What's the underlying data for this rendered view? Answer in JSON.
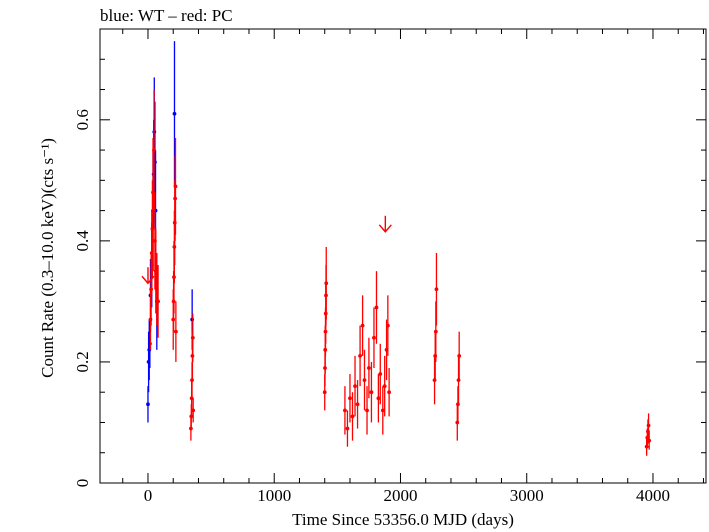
{
  "chart_data": {
    "type": "scatter",
    "title": "blue: WT – red: PC",
    "xlabel": "Time Since 53356.0 MJD (days)",
    "ylabel": "Count Rate (0.3–10.0 keV)(cts s⁻¹)",
    "xlim": [
      -380,
      4420
    ],
    "ylim": [
      0,
      0.75
    ],
    "xticks": [
      "0",
      "1000",
      "2000",
      "3000",
      "4000"
    ],
    "yticks": [
      "0",
      "0.2",
      "0.4",
      "0.6"
    ],
    "grid": false,
    "legend": "none",
    "series": [
      {
        "color": "#0000ff",
        "points": [
          {
            "x": 0,
            "y": 0.13,
            "err": 0.03
          },
          {
            "x": 5,
            "y": 0.2,
            "err": 0.05
          },
          {
            "x": 10,
            "y": 0.22,
            "err": 0.05
          },
          {
            "x": 15,
            "y": 0.23,
            "err": 0.04
          },
          {
            "x": 20,
            "y": 0.31,
            "err": 0.06
          },
          {
            "x": 30,
            "y": 0.36,
            "err": 0.07
          },
          {
            "x": 40,
            "y": 0.45,
            "err": 0.1
          },
          {
            "x": 45,
            "y": 0.51,
            "err": 0.09
          },
          {
            "x": 50,
            "y": 0.58,
            "err": 0.09
          },
          {
            "x": 55,
            "y": 0.53,
            "err": 0.1
          },
          {
            "x": 60,
            "y": 0.45,
            "err": 0.1
          },
          {
            "x": 70,
            "y": 0.3,
            "err": 0.08
          },
          {
            "x": 210,
            "y": 0.61,
            "err": 0.12
          },
          {
            "x": 350,
            "y": 0.27,
            "err": 0.05
          }
        ]
      },
      {
        "color": "#ff0000",
        "upper_limits": [
          {
            "x": 0,
            "y": 0.33
          },
          {
            "x": 1880,
            "y": 0.415
          }
        ],
        "points": [
          {
            "x": 20,
            "y": 0.27,
            "err": 0.05
          },
          {
            "x": 25,
            "y": 0.32,
            "err": 0.06
          },
          {
            "x": 30,
            "y": 0.38,
            "err": 0.07
          },
          {
            "x": 35,
            "y": 0.42,
            "err": 0.08
          },
          {
            "x": 40,
            "y": 0.48,
            "err": 0.09
          },
          {
            "x": 48,
            "y": 0.55,
            "err": 0.1
          },
          {
            "x": 55,
            "y": 0.4,
            "err": 0.08
          },
          {
            "x": 62,
            "y": 0.35,
            "err": 0.07
          },
          {
            "x": 70,
            "y": 0.32,
            "err": 0.06
          },
          {
            "x": 80,
            "y": 0.3,
            "err": 0.06
          },
          {
            "x": 200,
            "y": 0.27,
            "err": 0.05
          },
          {
            "x": 203,
            "y": 0.3,
            "err": 0.05
          },
          {
            "x": 206,
            "y": 0.34,
            "err": 0.06
          },
          {
            "x": 209,
            "y": 0.39,
            "err": 0.06
          },
          {
            "x": 212,
            "y": 0.43,
            "err": 0.07
          },
          {
            "x": 215,
            "y": 0.47,
            "err": 0.07
          },
          {
            "x": 218,
            "y": 0.49,
            "err": 0.08
          },
          {
            "x": 221,
            "y": 0.25,
            "err": 0.05
          },
          {
            "x": 340,
            "y": 0.09,
            "err": 0.02
          },
          {
            "x": 343,
            "y": 0.11,
            "err": 0.02
          },
          {
            "x": 346,
            "y": 0.14,
            "err": 0.03
          },
          {
            "x": 349,
            "y": 0.17,
            "err": 0.03
          },
          {
            "x": 352,
            "y": 0.21,
            "err": 0.04
          },
          {
            "x": 355,
            "y": 0.24,
            "err": 0.04
          },
          {
            "x": 358,
            "y": 0.12,
            "err": 0.02
          },
          {
            "x": 1400,
            "y": 0.15,
            "err": 0.03
          },
          {
            "x": 1402,
            "y": 0.19,
            "err": 0.03
          },
          {
            "x": 1404,
            "y": 0.22,
            "err": 0.04
          },
          {
            "x": 1406,
            "y": 0.25,
            "err": 0.04
          },
          {
            "x": 1408,
            "y": 0.28,
            "err": 0.05
          },
          {
            "x": 1410,
            "y": 0.31,
            "err": 0.05
          },
          {
            "x": 1412,
            "y": 0.33,
            "err": 0.06
          },
          {
            "x": 1560,
            "y": 0.12,
            "err": 0.04
          },
          {
            "x": 1580,
            "y": 0.09,
            "err": 0.03
          },
          {
            "x": 1600,
            "y": 0.14,
            "err": 0.04
          },
          {
            "x": 1620,
            "y": 0.11,
            "err": 0.04
          },
          {
            "x": 1640,
            "y": 0.16,
            "err": 0.05
          },
          {
            "x": 1660,
            "y": 0.13,
            "err": 0.04
          },
          {
            "x": 1680,
            "y": 0.21,
            "err": 0.05
          },
          {
            "x": 1700,
            "y": 0.26,
            "err": 0.05
          },
          {
            "x": 1715,
            "y": 0.17,
            "err": 0.05
          },
          {
            "x": 1735,
            "y": 0.12,
            "err": 0.04
          },
          {
            "x": 1750,
            "y": 0.19,
            "err": 0.05
          },
          {
            "x": 1770,
            "y": 0.15,
            "err": 0.05
          },
          {
            "x": 1790,
            "y": 0.24,
            "err": 0.05
          },
          {
            "x": 1810,
            "y": 0.29,
            "err": 0.06
          },
          {
            "x": 1825,
            "y": 0.14,
            "err": 0.04
          },
          {
            "x": 1840,
            "y": 0.18,
            "err": 0.05
          },
          {
            "x": 1860,
            "y": 0.12,
            "err": 0.04
          },
          {
            "x": 1875,
            "y": 0.16,
            "err": 0.05
          },
          {
            "x": 1890,
            "y": 0.22,
            "err": 0.05
          },
          {
            "x": 1900,
            "y": 0.26,
            "err": 0.05
          },
          {
            "x": 1910,
            "y": 0.15,
            "err": 0.04
          },
          {
            "x": 2270,
            "y": 0.17,
            "err": 0.04
          },
          {
            "x": 2275,
            "y": 0.21,
            "err": 0.04
          },
          {
            "x": 2280,
            "y": 0.25,
            "err": 0.05
          },
          {
            "x": 2285,
            "y": 0.32,
            "err": 0.06
          },
          {
            "x": 2450,
            "y": 0.1,
            "err": 0.03
          },
          {
            "x": 2455,
            "y": 0.13,
            "err": 0.03
          },
          {
            "x": 2460,
            "y": 0.17,
            "err": 0.04
          },
          {
            "x": 2465,
            "y": 0.21,
            "err": 0.04
          },
          {
            "x": 3950,
            "y": 0.06,
            "err": 0.015
          },
          {
            "x": 3955,
            "y": 0.075,
            "err": 0.015
          },
          {
            "x": 3960,
            "y": 0.085,
            "err": 0.02
          },
          {
            "x": 3965,
            "y": 0.095,
            "err": 0.02
          },
          {
            "x": 3970,
            "y": 0.07,
            "err": 0.015
          }
        ]
      }
    ]
  }
}
